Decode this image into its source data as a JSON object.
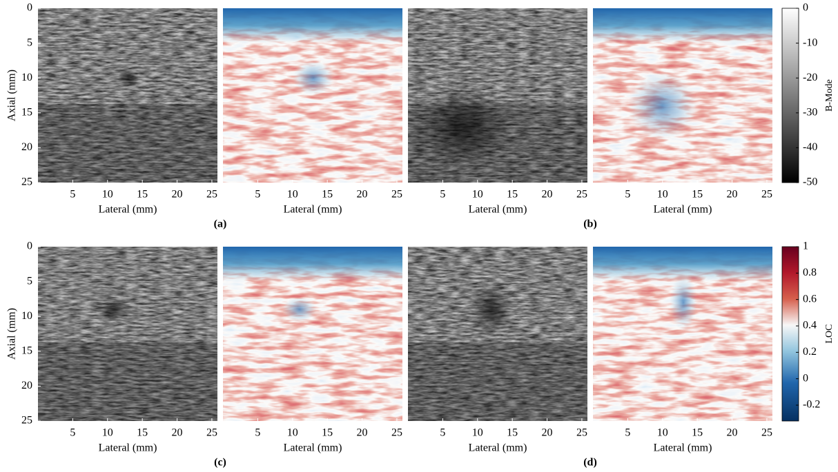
{
  "figure": {
    "axial_label": "Axial (mm)",
    "lateral_label": "Lateral (mm)",
    "xlim": [
      0,
      25.8
    ],
    "xticks": [
      5,
      10,
      15,
      20,
      25
    ],
    "ylim": [
      0,
      25
    ],
    "yticks": [
      0,
      5,
      10,
      15,
      20,
      25
    ],
    "captions": [
      "(a)",
      "(b)",
      "(c)",
      "(d)"
    ],
    "colorbars": [
      {
        "label": "B-Mode",
        "lim": [
          -50,
          0
        ],
        "ticks": [
          0,
          -10,
          -20,
          -30,
          -40,
          -50
        ]
      },
      {
        "label": "LOC",
        "lim": [
          -0.32,
          1
        ],
        "ticks": [
          1,
          0.8,
          0.6,
          0.4,
          0.2,
          0,
          -0.2
        ]
      }
    ]
  }
}
